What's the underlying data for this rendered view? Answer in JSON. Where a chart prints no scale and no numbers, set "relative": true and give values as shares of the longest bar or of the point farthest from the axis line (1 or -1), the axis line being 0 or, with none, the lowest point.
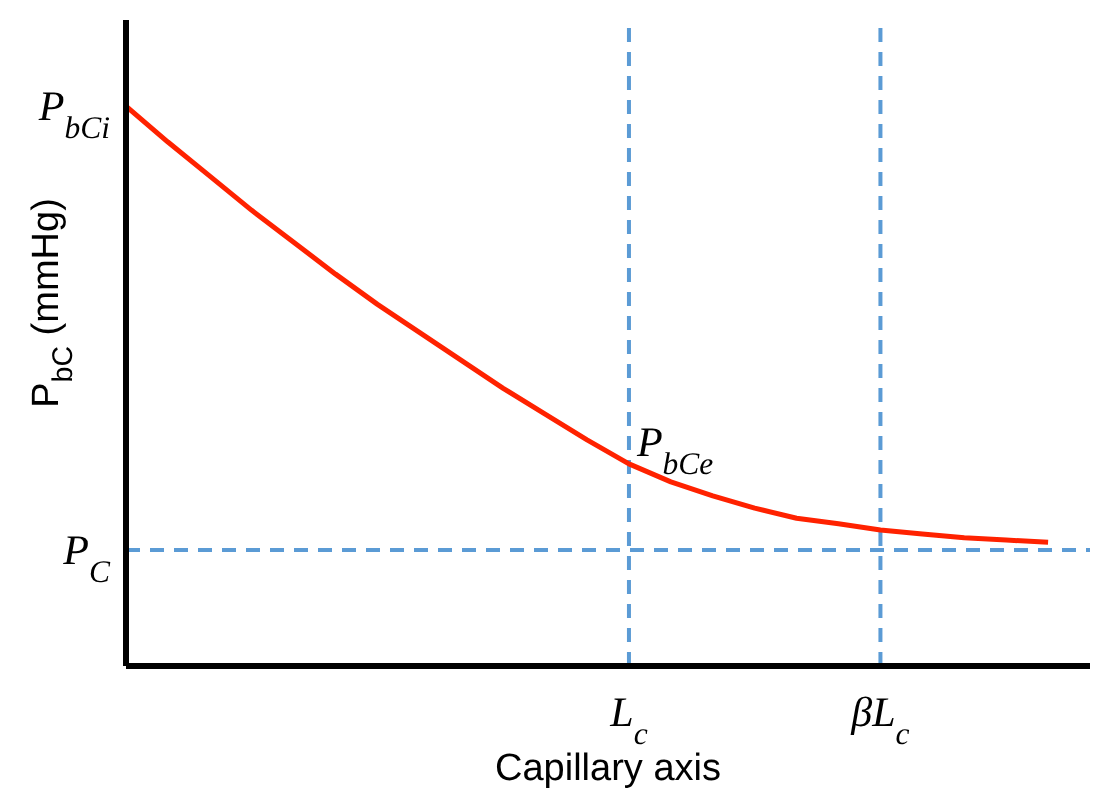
{
  "chart_data": {
    "type": "line",
    "relative": true,
    "xlabel": "Capillary axis",
    "ylabel": "P$_{bC}$ (mmHg)",
    "categories": [
      null,
      null,
      null,
      null,
      null,
      null,
      null,
      null,
      null,
      null,
      null,
      null,
      "L$_{c}$",
      null,
      null,
      null,
      null,
      null,
      "βL$_{c}$",
      null,
      null,
      null,
      null
    ],
    "series": [
      {
        "color": "#ff2200",
        "values": [
          1,
          0.936,
          0.875,
          0.814,
          0.757,
          0.7,
          0.646,
          0.596,
          0.546,
          0.496,
          0.45,
          0.404,
          0.361,
          0.329,
          0.304,
          0.282,
          0.264,
          0.254,
          0.243,
          0.236,
          0.229,
          0.225,
          0.221
        ]
      }
    ],
    "ref_lines": [
      {
        "axis": "y",
        "value": 0.207,
        "label": "P$_{C}$",
        "color": "#5b9bd5",
        "line_style": "dashed"
      },
      {
        "axis": "x",
        "value": "L$_{c}$",
        "color": "#5b9bd5",
        "line_style": "dashed"
      },
      {
        "axis": "x",
        "value": "βL$_{c}$",
        "color": "#5b9bd5",
        "line_style": "dashed"
      }
    ],
    "annotations": [
      "P$_{bCi}$",
      {
        "text": "P$_{bCe}$",
        "x": "L$_{c}$",
        "y": 0.361
      }
    ],
    "marker": "none",
    "line_style": "solid",
    "grid": false
  }
}
